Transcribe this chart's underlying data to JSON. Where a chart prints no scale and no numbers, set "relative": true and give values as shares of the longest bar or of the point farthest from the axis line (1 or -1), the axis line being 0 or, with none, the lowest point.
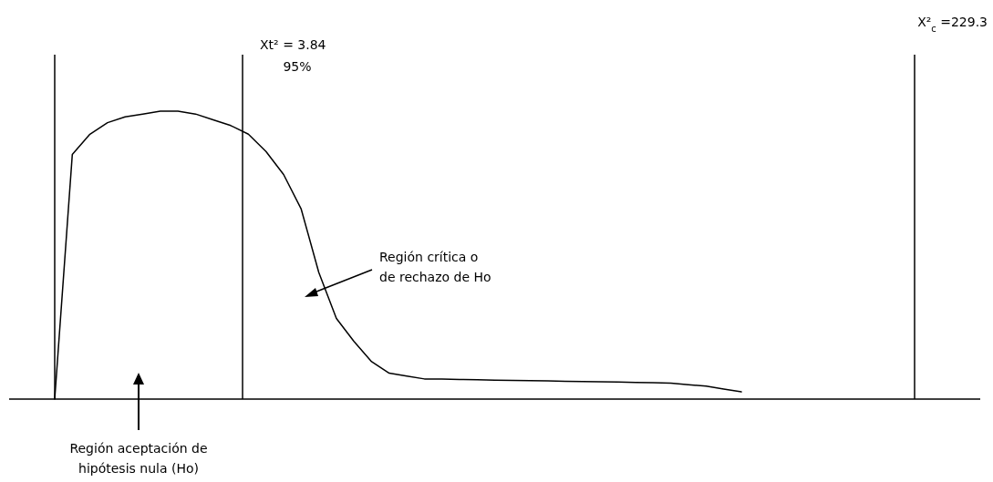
{
  "chart_data": {
    "type": "line",
    "relative": true,
    "marker": "none",
    "line_style": "solid",
    "categories": [
      null,
      null,
      null,
      null,
      null,
      null,
      null,
      null,
      null,
      null,
      null,
      null,
      null,
      null,
      null,
      null,
      null,
      null,
      null,
      null,
      null,
      null,
      null,
      null,
      null,
      null,
      null,
      null,
      null,
      null,
      null,
      null,
      null,
      null,
      null,
      null,
      null,
      null,
      null,
      null
    ],
    "series": [
      {
        "color": "#000000",
        "values": [
          0,
          0.85,
          0.92,
          0.96,
          0.98,
          0.99,
          1.0,
          1.0,
          0.99,
          0.97,
          0.95,
          0.92,
          0.86,
          0.78,
          0.66,
          0.44,
          0.28,
          0.2,
          0.13,
          0.09,
          0.08,
          0.07,
          0.07,
          0.068,
          0.067,
          0.066,
          0.065,
          0.064,
          0.063,
          0.062,
          0.061,
          0.06,
          0.059,
          0.058,
          0.057,
          0.055,
          0.05,
          0.045,
          0.035,
          0.025
        ]
      }
    ],
    "annotations": [
      "Xt² = 3.84",
      "95%",
      "X²$_{c}$ =229.3",
      "Región crítica o\nde rechazo de Ho",
      "Región aceptación de\nhipótesis nula (Ho)"
    ]
  }
}
